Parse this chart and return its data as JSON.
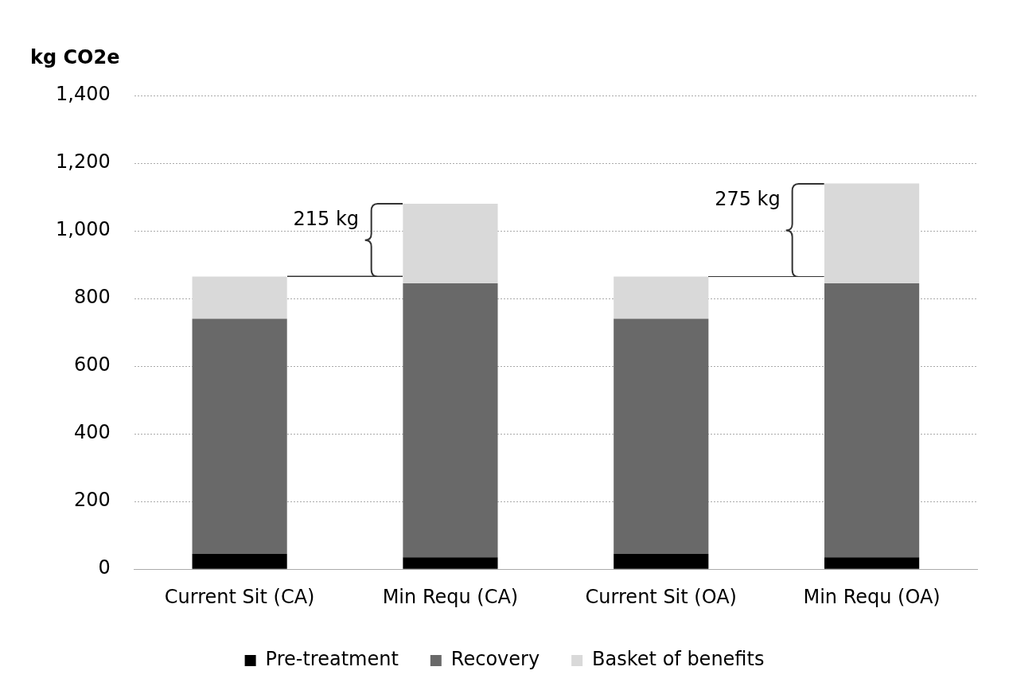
{
  "chart_data": {
    "type": "bar",
    "ylabel": "kg CO2e",
    "categories": [
      "Current Sit (CA)",
      "Min Requ (CA)",
      "Current Sit (OA)",
      "Min Requ (OA)"
    ],
    "stacked": true,
    "series": [
      {
        "name": "Pre-treatment",
        "color": "#000000",
        "values": [
          45,
          35,
          45,
          35
        ]
      },
      {
        "name": "Recovery",
        "color": "#696969",
        "values": [
          695,
          810,
          695,
          810
        ]
      },
      {
        "name": "Basket of benefits",
        "color": "#d9d9d9",
        "values": [
          125,
          235,
          125,
          295
        ]
      }
    ],
    "ylim": [
      0,
      1400
    ],
    "yticks": [
      {
        "value": 0,
        "label": "0"
      },
      {
        "value": 200,
        "label": "200"
      },
      {
        "value": 400,
        "label": "400"
      },
      {
        "value": 600,
        "label": "600"
      },
      {
        "value": 800,
        "label": "800"
      },
      {
        "value": 1000,
        "label": "1,000"
      },
      {
        "value": 1200,
        "label": "1,200"
      },
      {
        "value": 1400,
        "label": "1,400"
      }
    ],
    "grid": "y",
    "legend": "bottom",
    "annotations": [
      "215 kg",
      "275 kg"
    ]
  }
}
